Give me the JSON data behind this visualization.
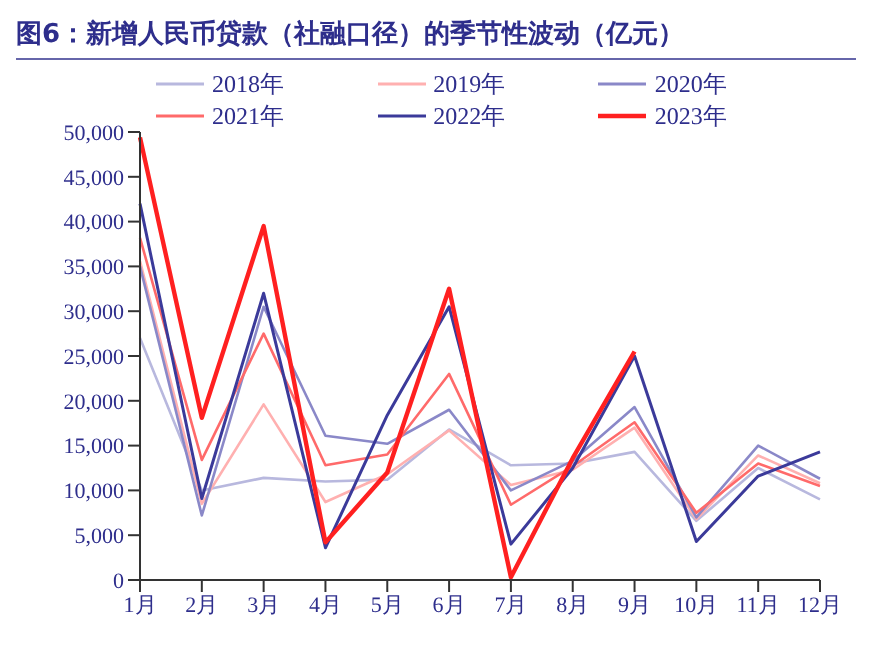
{
  "chart_data": {
    "type": "line",
    "title": "图6：新增人民币贷款（社融口径）的季节性波动（亿元）",
    "categories": [
      "1月",
      "2月",
      "3月",
      "4月",
      "5月",
      "6月",
      "7月",
      "8月",
      "9月",
      "10月",
      "11月",
      "12月"
    ],
    "series": [
      {
        "name": "2018年",
        "color": "#b8b8de",
        "values": [
          27000,
          10000,
          11400,
          11000,
          11200,
          16800,
          12800,
          13000,
          14300,
          6600,
          12500,
          9000
        ]
      },
      {
        "name": "2019年",
        "color": "#ffb0b0",
        "values": [
          35600,
          8500,
          19600,
          8700,
          11800,
          16700,
          10600,
          12300,
          17000,
          6800,
          13900,
          10800
        ]
      },
      {
        "name": "2020年",
        "color": "#8a88c8",
        "values": [
          35000,
          7200,
          30500,
          16100,
          15200,
          19000,
          10000,
          13300,
          19300,
          7000,
          15000,
          11300
        ]
      },
      {
        "name": "2021年",
        "color": "#ff6a6a",
        "values": [
          38200,
          13400,
          27500,
          12800,
          14000,
          23000,
          8400,
          12700,
          17600,
          7500,
          13000,
          10500
        ]
      },
      {
        "name": "2022年",
        "color": "#3b3a9a",
        "values": [
          42000,
          9100,
          32000,
          3600,
          18400,
          30500,
          4000,
          12500,
          25000,
          4300,
          11600,
          14300
        ]
      },
      {
        "name": "2023年",
        "color": "#ff2020",
        "values": [
          49400,
          18100,
          39500,
          4200,
          12000,
          32500,
          300,
          13600,
          25500,
          null,
          null,
          null
        ]
      }
    ],
    "ylim": [
      0,
      50000
    ],
    "yticks": [
      0,
      {
        "value": 5000,
        "label": "5,000"
      },
      {
        "value": 10000,
        "label": "10,000"
      },
      {
        "value": 15000,
        "label": "15,000"
      },
      {
        "value": 20000,
        "label": "20,000"
      },
      {
        "value": 25000,
        "label": "25,000"
      },
      {
        "value": 30000,
        "label": "30,000"
      },
      {
        "value": 35000,
        "label": "35,000"
      },
      {
        "value": 40000,
        "label": "40,000"
      },
      {
        "value": 45000,
        "label": "45,000"
      },
      {
        "value": 50000,
        "label": "50,000"
      }
    ],
    "legend": "top",
    "grid": false,
    "marker": "none",
    "line_style": "solid"
  }
}
